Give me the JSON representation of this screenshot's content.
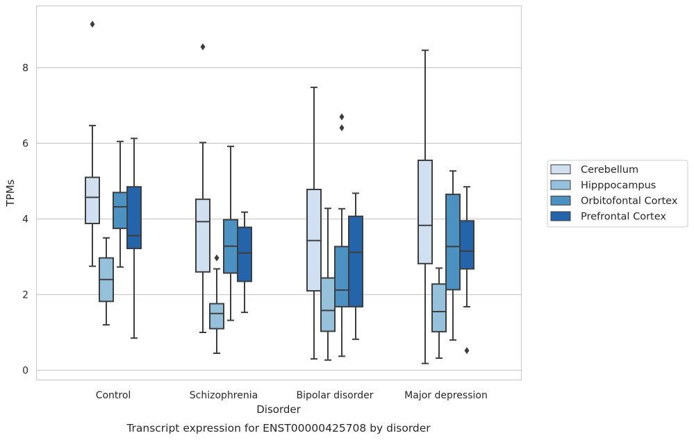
{
  "chart_data": {
    "type": "box",
    "caption": "Transcript expression for ENST00000425708 by disorder",
    "xlabel": "Disorder",
    "ylabel": "TPMs",
    "ylim": [
      -0.25,
      9.65
    ],
    "yticks": [
      0,
      2,
      4,
      6,
      8
    ],
    "categories": [
      "Control",
      "Schizophrenia",
      "Bipolar disorder",
      "Major depression"
    ],
    "grid": "horizontal",
    "legend_position": "right",
    "series": [
      {
        "name": "Cerebellum",
        "color": "#d0e0f1",
        "boxes": [
          {
            "whislo": 2.75,
            "q1": 3.88,
            "med": 4.57,
            "q3": 5.1,
            "whishi": 6.47,
            "fliers": [
              9.15
            ]
          },
          {
            "whislo": 1.0,
            "q1": 2.6,
            "med": 3.93,
            "q3": 4.52,
            "whishi": 6.02,
            "fliers": [
              8.55
            ]
          },
          {
            "whislo": 0.3,
            "q1": 2.1,
            "med": 3.43,
            "q3": 4.78,
            "whishi": 7.48,
            "fliers": []
          },
          {
            "whislo": 0.18,
            "q1": 2.82,
            "med": 3.83,
            "q3": 5.55,
            "whishi": 8.46,
            "fliers": []
          }
        ]
      },
      {
        "name": "Hipppocampus",
        "color": "#96c1dd",
        "boxes": [
          {
            "whislo": 1.2,
            "q1": 1.82,
            "med": 2.4,
            "q3": 2.97,
            "whishi": 3.5,
            "fliers": []
          },
          {
            "whislo": 0.45,
            "q1": 1.1,
            "med": 1.5,
            "q3": 1.76,
            "whishi": 2.68,
            "fliers": [
              2.97
            ]
          },
          {
            "whislo": 0.27,
            "q1": 1.03,
            "med": 1.58,
            "q3": 2.44,
            "whishi": 4.28,
            "fliers": []
          },
          {
            "whislo": 0.32,
            "q1": 1.02,
            "med": 1.55,
            "q3": 2.28,
            "whishi": 2.7,
            "fliers": []
          }
        ]
      },
      {
        "name": "Orbitofontal Cortex",
        "color": "#4b91c2",
        "boxes": [
          {
            "whislo": 2.73,
            "q1": 3.75,
            "med": 4.32,
            "q3": 4.7,
            "whishi": 6.05,
            "fliers": []
          },
          {
            "whislo": 1.32,
            "q1": 2.57,
            "med": 3.28,
            "q3": 3.98,
            "whishi": 5.92,
            "fliers": []
          },
          {
            "whislo": 0.37,
            "q1": 1.68,
            "med": 2.12,
            "q3": 3.27,
            "whishi": 4.27,
            "fliers": [
              6.41,
              6.7
            ]
          },
          {
            "whislo": 0.8,
            "q1": 2.13,
            "med": 3.27,
            "q3": 4.65,
            "whishi": 5.27,
            "fliers": []
          }
        ]
      },
      {
        "name": "Prefrontal Cortex",
        "color": "#2364aa",
        "boxes": [
          {
            "whislo": 0.85,
            "q1": 3.22,
            "med": 3.56,
            "q3": 4.85,
            "whishi": 6.13,
            "fliers": []
          },
          {
            "whislo": 1.53,
            "q1": 2.35,
            "med": 3.1,
            "q3": 3.78,
            "whishi": 4.18,
            "fliers": []
          },
          {
            "whislo": 0.82,
            "q1": 1.68,
            "med": 3.12,
            "q3": 4.07,
            "whishi": 4.68,
            "fliers": []
          },
          {
            "whislo": 1.68,
            "q1": 2.68,
            "med": 3.15,
            "q3": 3.95,
            "whishi": 4.85,
            "fliers": [
              0.52
            ]
          }
        ]
      }
    ]
  },
  "style": {
    "line_color": "#3d3d3d",
    "grid_color": "#cccccc",
    "frame_color": "#cccccc"
  }
}
